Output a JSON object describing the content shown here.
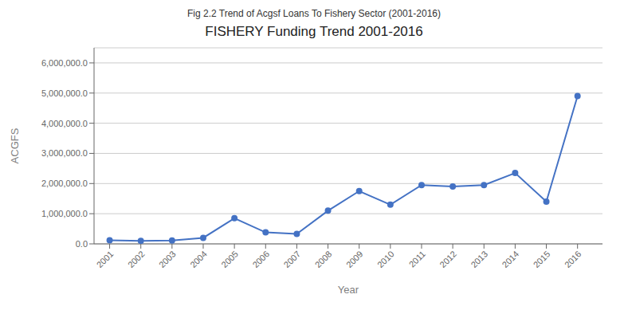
{
  "chart_data": {
    "type": "line",
    "subtitle": "Fig 2.2 Trend of Acgsf Loans To Fishery Sector (2001-2016)",
    "title": "FISHERY Funding Trend 2001-2016",
    "x_label": "Year",
    "y_label": "ACGFS",
    "x": [
      2001,
      2002,
      2003,
      2004,
      2005,
      2006,
      2007,
      2008,
      2009,
      2010,
      2011,
      2012,
      2013,
      2014,
      2015,
      2016
    ],
    "values": [
      120000,
      100000,
      110000,
      200000,
      850000,
      380000,
      330000,
      1100000,
      1750000,
      1300000,
      1950000,
      1900000,
      1950000,
      2350000,
      1400000,
      4900000
    ],
    "color": "#4472C4",
    "marker": "circle",
    "line_style": "solid",
    "xlim": [
      2000.5,
      2016.8
    ],
    "xticks": [
      2001,
      2002,
      2003,
      2004,
      2005,
      2006,
      2007,
      2008,
      2009,
      2010,
      2011,
      2012,
      2013,
      2014,
      2015,
      2016
    ],
    "ylim": [
      0,
      6500000
    ],
    "yticks": [
      {
        "value": 0,
        "label": "0.0"
      },
      {
        "value": 1000000,
        "label": "1,000,000.0"
      },
      {
        "value": 2000000,
        "label": "2,000,000.0"
      },
      {
        "value": 3000000,
        "label": "3,000,000.0"
      },
      {
        "value": 4000000,
        "label": "4,000,000.0"
      },
      {
        "value": 5000000,
        "label": "5,000,000.0"
      },
      {
        "value": 6000000,
        "label": "6,000,000.0"
      }
    ],
    "grid": true
  }
}
